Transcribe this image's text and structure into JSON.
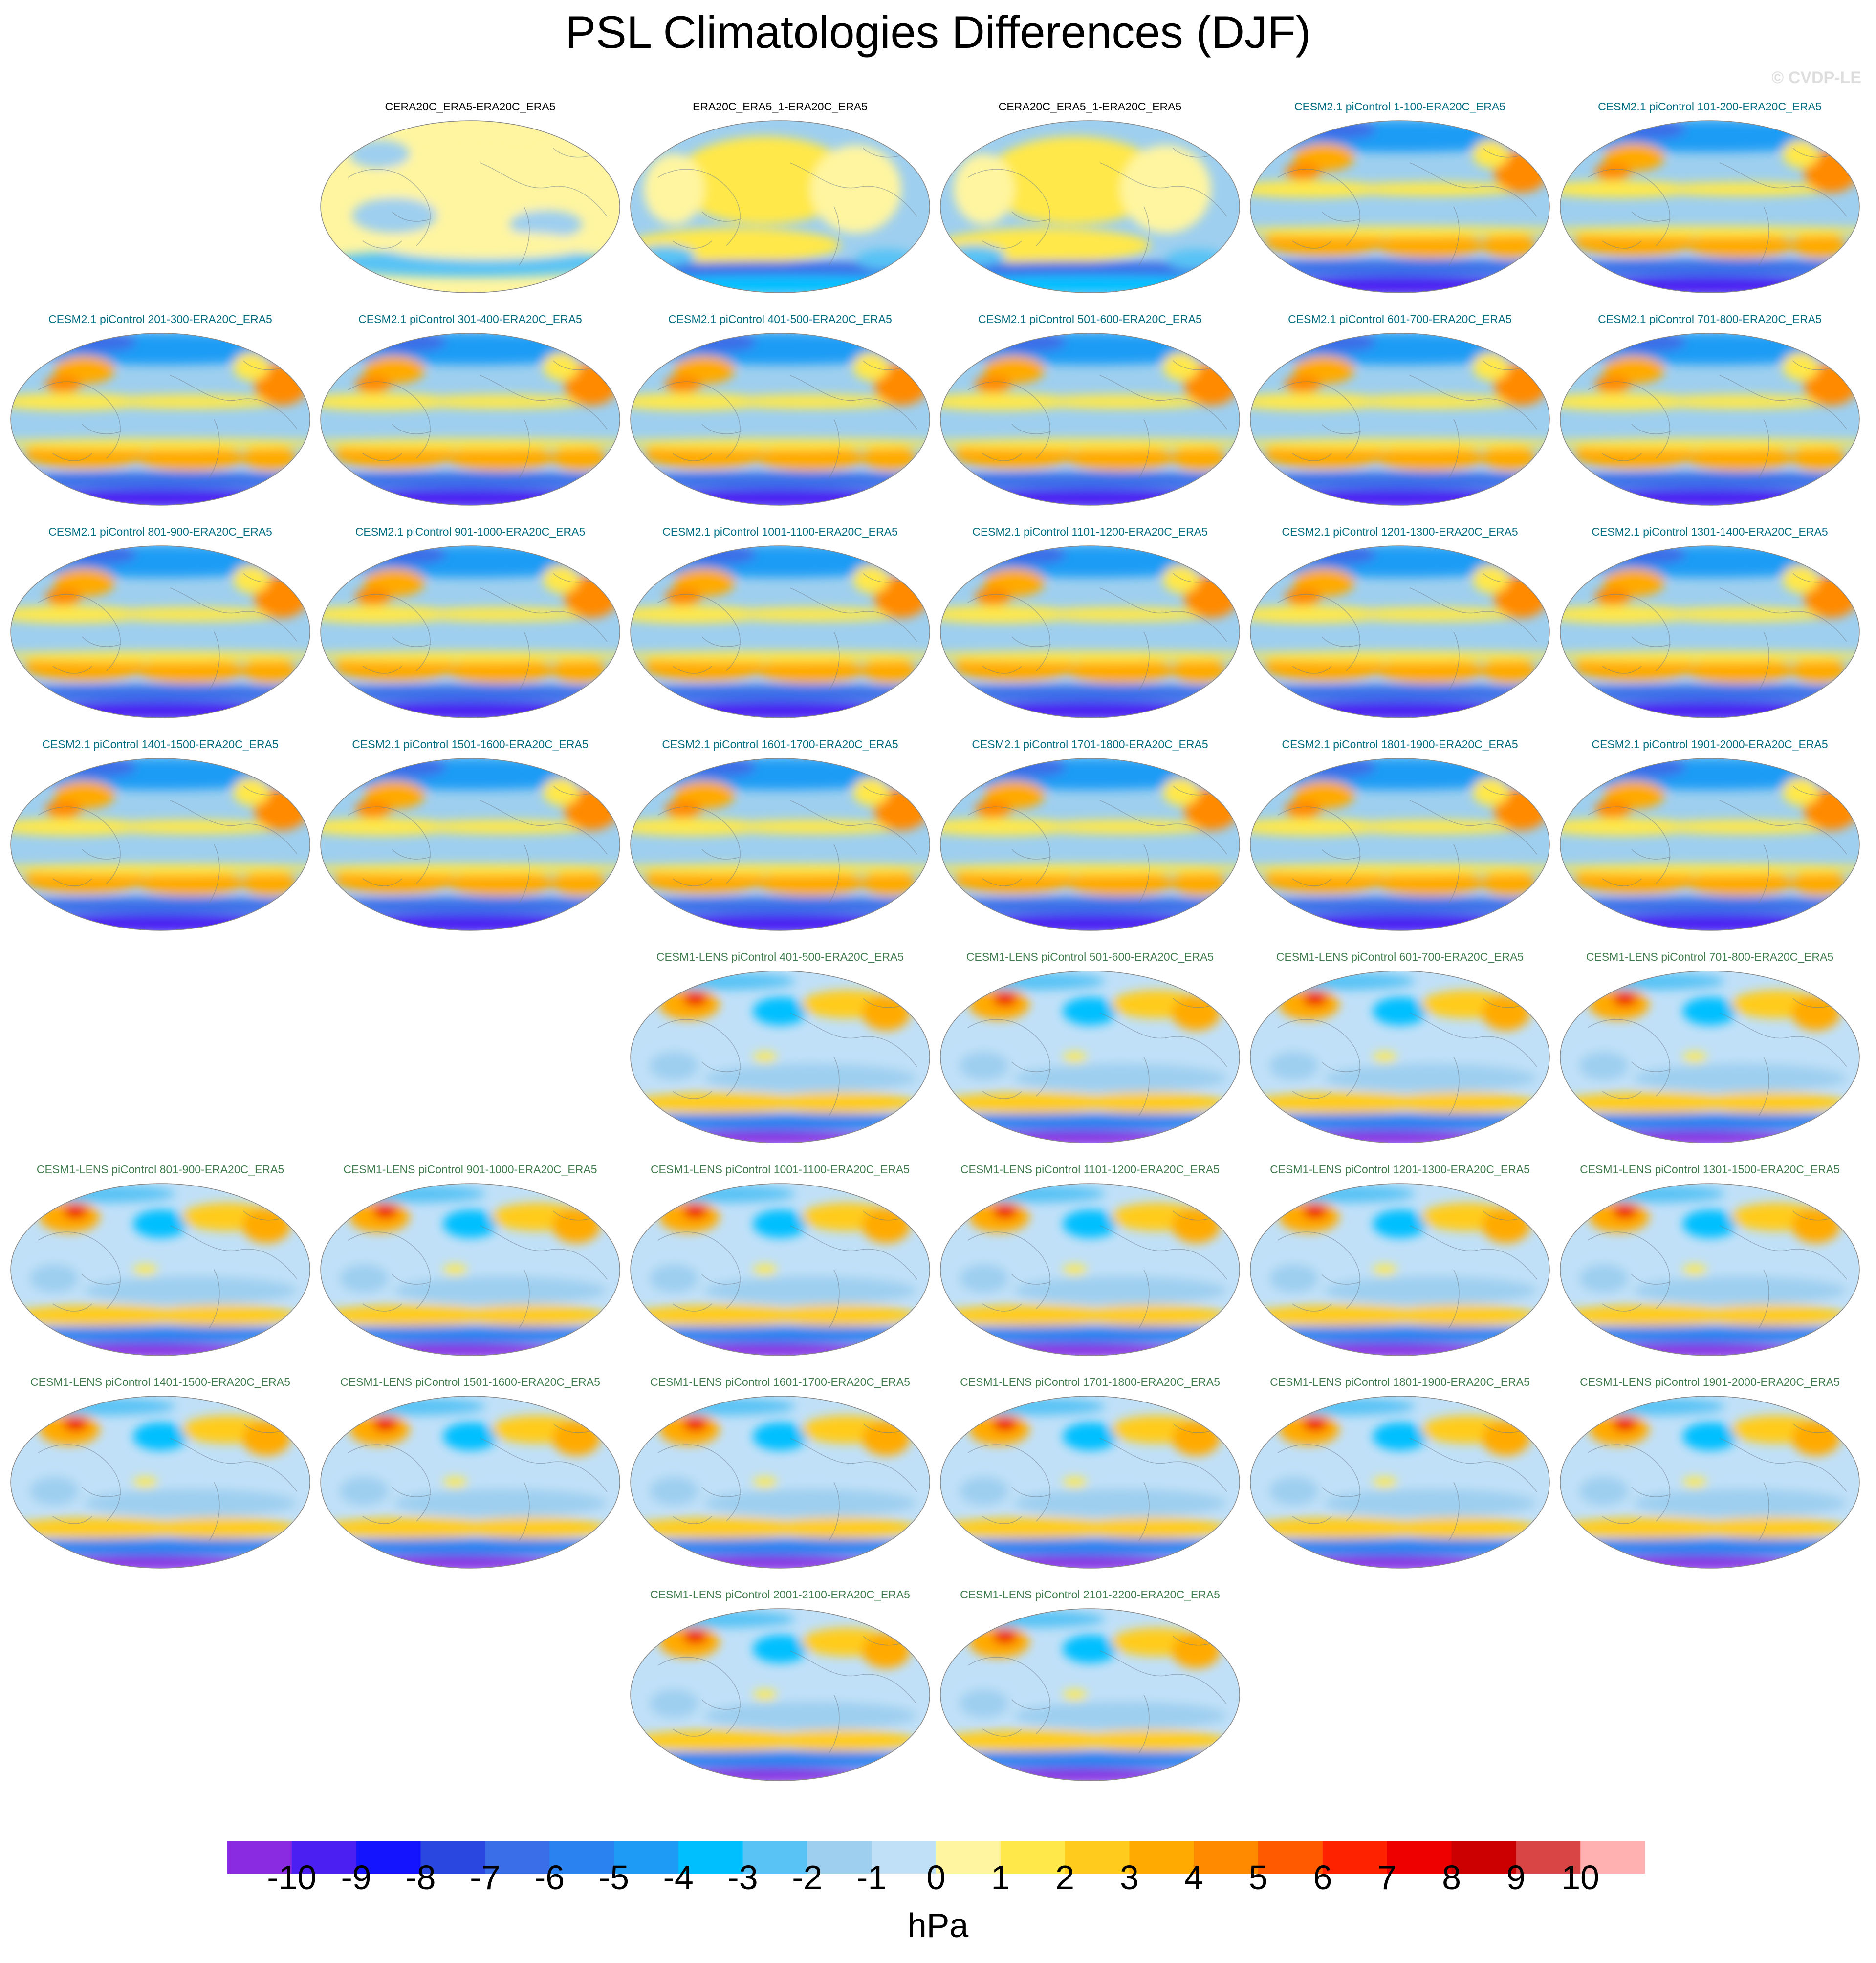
{
  "title": "PSL Climatologies Differences (DJF)",
  "watermark": "© CVDP-LE",
  "units": "hPa",
  "colorbar": {
    "ticks": [
      "-10",
      "-9",
      "-8",
      "-7",
      "-6",
      "-5",
      "-4",
      "-3",
      "-2",
      "-1",
      "0",
      "1",
      "2",
      "3",
      "4",
      "5",
      "6",
      "7",
      "8",
      "9",
      "10"
    ],
    "colors": [
      "#8a2be2",
      "#4b1ff2",
      "#1414ff",
      "#2a48e0",
      "#3a6ee8",
      "#2a82f0",
      "#1e9cf5",
      "#00bfff",
      "#59c3f5",
      "#9ecfef",
      "#c0e0f8",
      "#fff5a0",
      "#ffe84a",
      "#ffcc1e",
      "#ffaa00",
      "#ff8a00",
      "#ff5a00",
      "#ff2200",
      "#ee0000",
      "#cc0000",
      "#d94444",
      "#ffb0b0"
    ]
  },
  "group_colors": {
    "obs": "#000000",
    "cesm2": "#006c80",
    "lens": "#3e7a4c"
  },
  "panels": [
    {
      "label": "CERA20C_ERA5-ERA20C_ERA5",
      "group": "obs",
      "style": "obs-a"
    },
    {
      "label": "ERA20C_ERA5_1-ERA20C_ERA5",
      "group": "obs",
      "style": "obs-b"
    },
    {
      "label": "CERA20C_ERA5_1-ERA20C_ERA5",
      "group": "obs",
      "style": "obs-b"
    },
    {
      "label": "CESM2.1 piControl 1-100-ERA20C_ERA5",
      "group": "cesm2",
      "style": "cesm2"
    },
    {
      "label": "CESM2.1 piControl 101-200-ERA20C_ERA5",
      "group": "cesm2",
      "style": "cesm2"
    },
    {
      "label": "CESM2.1 piControl 201-300-ERA20C_ERA5",
      "group": "cesm2",
      "style": "cesm2"
    },
    {
      "label": "CESM2.1 piControl 301-400-ERA20C_ERA5",
      "group": "cesm2",
      "style": "cesm2"
    },
    {
      "label": "CESM2.1 piControl 401-500-ERA20C_ERA5",
      "group": "cesm2",
      "style": "cesm2"
    },
    {
      "label": "CESM2.1 piControl 501-600-ERA20C_ERA5",
      "group": "cesm2",
      "style": "cesm2"
    },
    {
      "label": "CESM2.1 piControl 601-700-ERA20C_ERA5",
      "group": "cesm2",
      "style": "cesm2"
    },
    {
      "label": "CESM2.1 piControl 701-800-ERA20C_ERA5",
      "group": "cesm2",
      "style": "cesm2"
    },
    {
      "label": "CESM2.1 piControl 801-900-ERA20C_ERA5",
      "group": "cesm2",
      "style": "cesm2"
    },
    {
      "label": "CESM2.1 piControl 901-1000-ERA20C_ERA5",
      "group": "cesm2",
      "style": "cesm2"
    },
    {
      "label": "CESM2.1 piControl 1001-1100-ERA20C_ERA5",
      "group": "cesm2",
      "style": "cesm2"
    },
    {
      "label": "CESM2.1 piControl 1101-1200-ERA20C_ERA5",
      "group": "cesm2",
      "style": "cesm2"
    },
    {
      "label": "CESM2.1 piControl 1201-1300-ERA20C_ERA5",
      "group": "cesm2",
      "style": "cesm2"
    },
    {
      "label": "CESM2.1 piControl 1301-1400-ERA20C_ERA5",
      "group": "cesm2",
      "style": "cesm2"
    },
    {
      "label": "CESM2.1 piControl 1401-1500-ERA20C_ERA5",
      "group": "cesm2",
      "style": "cesm2"
    },
    {
      "label": "CESM2.1 piControl 1501-1600-ERA20C_ERA5",
      "group": "cesm2",
      "style": "cesm2"
    },
    {
      "label": "CESM2.1 piControl 1601-1700-ERA20C_ERA5",
      "group": "cesm2",
      "style": "cesm2"
    },
    {
      "label": "CESM2.1 piControl 1701-1800-ERA20C_ERA5",
      "group": "cesm2",
      "style": "cesm2"
    },
    {
      "label": "CESM2.1 piControl 1801-1900-ERA20C_ERA5",
      "group": "cesm2",
      "style": "cesm2"
    },
    {
      "label": "CESM2.1 piControl 1901-2000-ERA20C_ERA5",
      "group": "cesm2",
      "style": "cesm2"
    },
    {
      "label": "CESM1-LENS piControl 401-500-ERA20C_ERA5",
      "group": "lens",
      "style": "lens"
    },
    {
      "label": "CESM1-LENS piControl 501-600-ERA20C_ERA5",
      "group": "lens",
      "style": "lens"
    },
    {
      "label": "CESM1-LENS piControl 601-700-ERA20C_ERA5",
      "group": "lens",
      "style": "lens"
    },
    {
      "label": "CESM1-LENS piControl 701-800-ERA20C_ERA5",
      "group": "lens",
      "style": "lens"
    },
    {
      "label": "CESM1-LENS piControl 801-900-ERA20C_ERA5",
      "group": "lens",
      "style": "lens"
    },
    {
      "label": "CESM1-LENS piControl 901-1000-ERA20C_ERA5",
      "group": "lens",
      "style": "lens"
    },
    {
      "label": "CESM1-LENS piControl 1001-1100-ERA20C_ERA5",
      "group": "lens",
      "style": "lens"
    },
    {
      "label": "CESM1-LENS piControl 1101-1200-ERA20C_ERA5",
      "group": "lens",
      "style": "lens"
    },
    {
      "label": "CESM1-LENS piControl 1201-1300-ERA20C_ERA5",
      "group": "lens",
      "style": "lens"
    },
    {
      "label": "CESM1-LENS piControl 1301-1500-ERA20C_ERA5",
      "group": "lens",
      "style": "lens"
    },
    {
      "label": "CESM1-LENS piControl 1401-1500-ERA20C_ERA5",
      "group": "lens",
      "style": "lens"
    },
    {
      "label": "CESM1-LENS piControl 1501-1600-ERA20C_ERA5",
      "group": "lens",
      "style": "lens"
    },
    {
      "label": "CESM1-LENS piControl 1601-1700-ERA20C_ERA5",
      "group": "lens",
      "style": "lens"
    },
    {
      "label": "CESM1-LENS piControl 1701-1800-ERA20C_ERA5",
      "group": "lens",
      "style": "lens"
    },
    {
      "label": "CESM1-LENS piControl 1801-1900-ERA20C_ERA5",
      "group": "lens",
      "style": "lens"
    },
    {
      "label": "CESM1-LENS piControl 1901-2000-ERA20C_ERA5",
      "group": "lens",
      "style": "lens"
    },
    {
      "label": "CESM1-LENS piControl 2001-2100-ERA20C_ERA5",
      "group": "lens",
      "style": "lens"
    },
    {
      "label": "CESM1-LENS piControl 2101-2200-ERA20C_ERA5",
      "group": "lens",
      "style": "lens"
    }
  ]
}
